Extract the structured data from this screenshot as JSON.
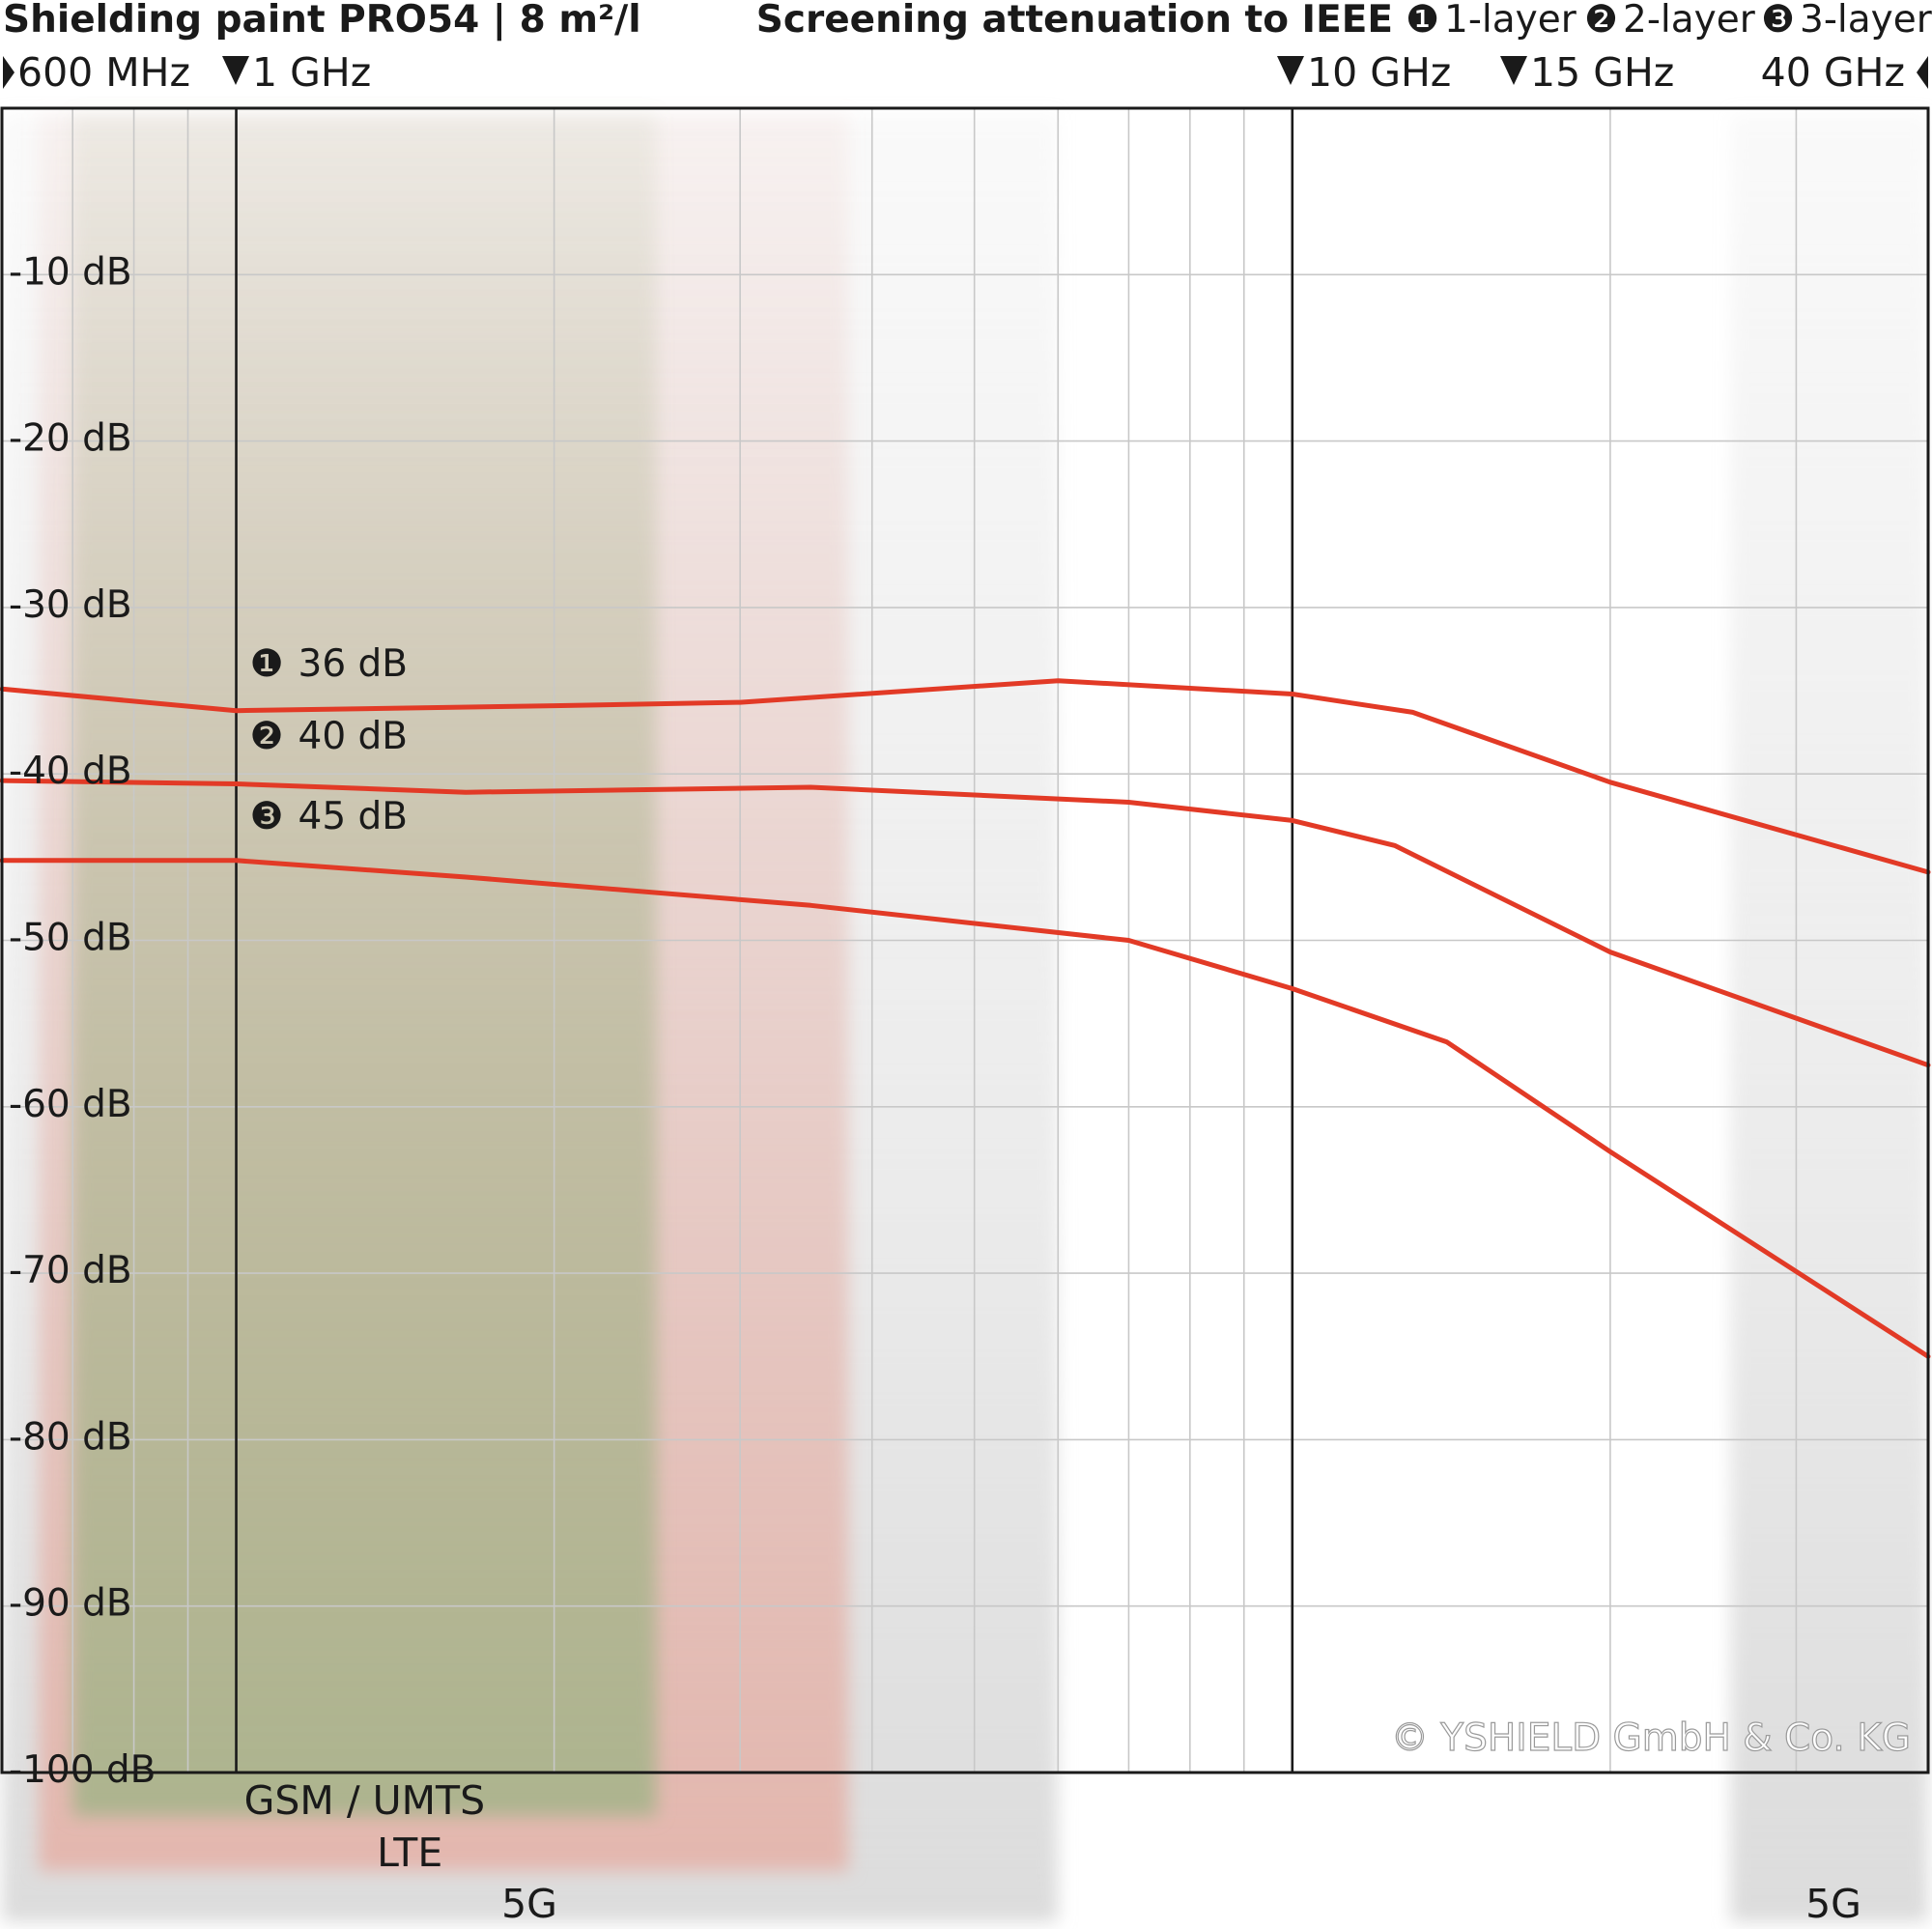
{
  "chart_data": {
    "type": "line",
    "title": "Shielding paint PRO54 | 8 m²/l",
    "subtitle": "Screening attenuation to IEEE",
    "legend": [
      {
        "marker": "❶",
        "label": "1-layer"
      },
      {
        "marker": "❷",
        "label": "2-layer"
      },
      {
        "marker": "❸",
        "label": "3-layer"
      }
    ],
    "x_scale": "log",
    "xlim_mhz": [
      600,
      40000
    ],
    "frequency_markers": [
      {
        "label": "600 MHz",
        "mhz": 600,
        "arrow": "right"
      },
      {
        "label": "1 GHz",
        "mhz": 1000,
        "arrow": "down"
      },
      {
        "label": "10 GHz",
        "mhz": 10000,
        "arrow": "down"
      },
      {
        "label": "15 GHz",
        "mhz": 15000,
        "arrow": "down"
      },
      {
        "label": "40 GHz",
        "mhz": 40000,
        "arrow": "left"
      }
    ],
    "y_ticks": [
      "-10 dB",
      "-20 dB",
      "-30 dB",
      "-40 dB",
      "-50 dB",
      "-60 dB",
      "-70 dB",
      "-80 dB",
      "-90 dB",
      "-100 dB"
    ],
    "ylim": [
      0,
      -100
    ],
    "grid": true,
    "series": [
      {
        "name": "1-layer",
        "marker": "❶",
        "label": "36 dB",
        "color": "#e23a26",
        "x_mhz": [
          600,
          1000,
          2000,
          3000,
          6000,
          10000,
          13000,
          20000,
          40000
        ],
        "y_db": [
          -34.9,
          -36.2,
          -35.9,
          -35.7,
          -34.4,
          -35.2,
          -36.3,
          -40.5,
          -45.9
        ]
      },
      {
        "name": "2-layer",
        "marker": "❷",
        "label": "40 dB",
        "color": "#e23a26",
        "x_mhz": [
          600,
          1000,
          1650,
          3500,
          7000,
          10000,
          12500,
          20000,
          40000
        ],
        "y_db": [
          -40.4,
          -40.6,
          -41.1,
          -40.8,
          -41.7,
          -42.8,
          -44.3,
          -50.7,
          -57.5
        ]
      },
      {
        "name": "3-layer",
        "marker": "❸",
        "label": "45 dB",
        "color": "#e23a26",
        "x_mhz": [
          600,
          1000,
          1650,
          3500,
          7000,
          10000,
          14000,
          20000,
          40000
        ],
        "y_db": [
          -45.2,
          -45.2,
          -46.2,
          -47.9,
          -50.0,
          -52.9,
          -56.1,
          -62.7,
          -75.0
        ]
      }
    ],
    "bands": [
      {
        "label": "GSM / UMTS",
        "mhz": [
          700,
          2500
        ],
        "color": "#aab48d"
      },
      {
        "label": "LTE",
        "mhz": [
          650,
          3800
        ],
        "color": "#e4b5ac"
      },
      {
        "label": "5G",
        "mhz": [
          600,
          6000
        ],
        "color": "#dadada"
      },
      {
        "label": "5G",
        "mhz": [
          26000,
          40000
        ],
        "color": "#dadada"
      }
    ],
    "copyright": "© YSHIELD GmbH & Co. KG"
  }
}
